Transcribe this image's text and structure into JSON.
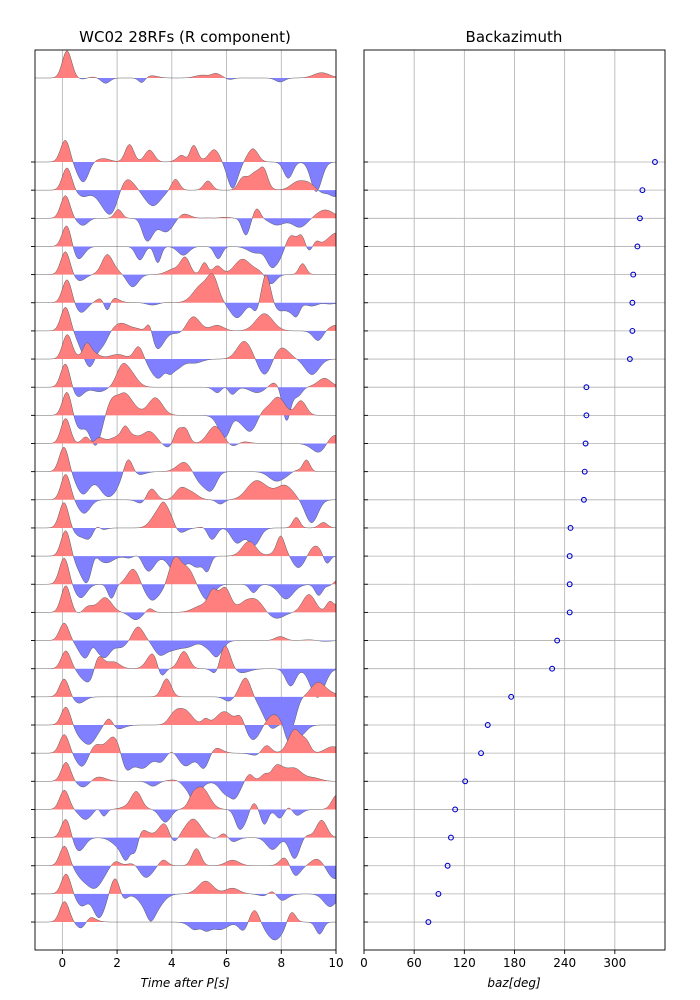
{
  "chart_data": [
    {
      "type": "area",
      "title": "WC02 28RFs (R component)",
      "xlabel": "Time after P[s]",
      "xlim": [
        -1,
        10
      ],
      "xticks": [
        0,
        2,
        4,
        6,
        8,
        10
      ],
      "x_grid": true,
      "positive_fill": "#ff7f7f",
      "negative_fill": "#7f7fff",
      "n_traces": 28,
      "stacked_trace_on_top": true
    },
    {
      "type": "scatter",
      "title": "Backazimuth",
      "xlabel": "baz[deg]",
      "xlim": [
        0,
        360
      ],
      "xticks": [
        0,
        60,
        120,
        180,
        240,
        300
      ],
      "grid": true,
      "marker_color": "#0000cc",
      "baz": [
        348,
        333,
        330,
        327,
        322,
        321,
        321,
        318,
        266,
        266,
        265,
        264,
        263,
        247,
        246,
        246,
        246,
        231,
        225,
        176,
        148,
        140,
        121,
        109,
        104,
        100,
        89,
        77
      ]
    }
  ]
}
